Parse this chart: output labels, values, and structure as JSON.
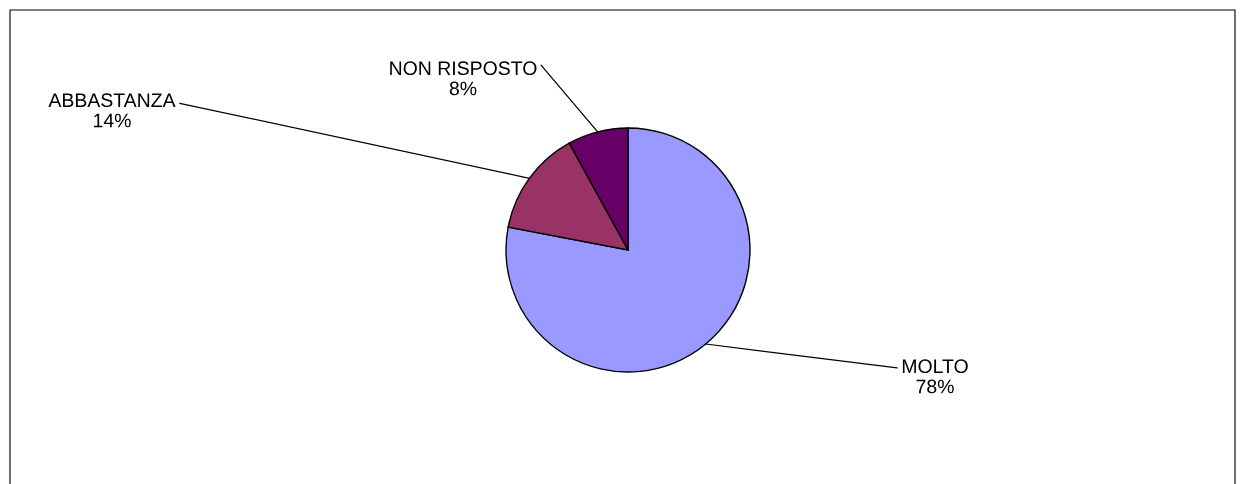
{
  "chart_data": {
    "type": "pie",
    "categories": [
      "MOLTO",
      "ABBASTANZA",
      "NON RISPOSTO"
    ],
    "values": [
      78,
      14,
      8
    ],
    "colors": [
      "#9999ff",
      "#993366",
      "#660066"
    ],
    "value_labels": [
      "78%",
      "14%",
      "8%"
    ],
    "legend": false
  }
}
